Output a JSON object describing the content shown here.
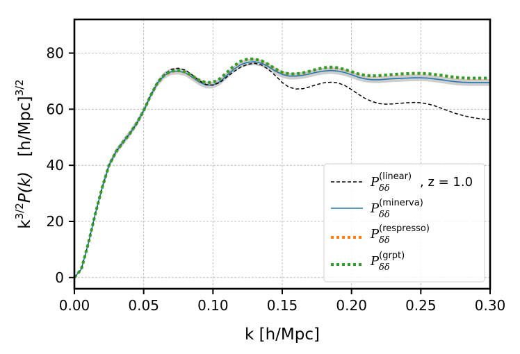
{
  "chart_data": {
    "type": "line",
    "title": "",
    "xlabel": "k [h/Mpc]",
    "ylabel": {
      "main": "k",
      "exponent": "3/2",
      "func": "P(k)",
      "units_open": "[h/Mpc]",
      "units_exponent": "3/2"
    },
    "xlim": [
      0.0,
      0.3
    ],
    "ylim": [
      -4,
      92
    ],
    "xticks": [
      0.0,
      0.05,
      0.1,
      0.15,
      0.2,
      0.25,
      0.3
    ],
    "xtick_labels": [
      "0.00",
      "0.05",
      "0.10",
      "0.15",
      "0.20",
      "0.25",
      "0.30"
    ],
    "yticks": [
      0,
      20,
      40,
      60,
      80
    ],
    "ytick_labels": [
      "0",
      "20",
      "40",
      "60",
      "80"
    ],
    "grid": true,
    "legend_position": "lower-right",
    "series": [
      {
        "name": "linear",
        "legend": {
          "base": "P",
          "sup": "(linear)",
          "sub": "δδ",
          "tail": ", z = 1.0"
        },
        "color": "#000000",
        "style": "dashed",
        "x": [
          0.0,
          0.005,
          0.01,
          0.015,
          0.02,
          0.025,
          0.03,
          0.035,
          0.04,
          0.045,
          0.05,
          0.055,
          0.06,
          0.065,
          0.07,
          0.075,
          0.08,
          0.085,
          0.09,
          0.095,
          0.1,
          0.105,
          0.11,
          0.115,
          0.12,
          0.125,
          0.13,
          0.135,
          0.14,
          0.145,
          0.15,
          0.155,
          0.16,
          0.165,
          0.17,
          0.175,
          0.18,
          0.185,
          0.19,
          0.195,
          0.2,
          0.205,
          0.21,
          0.215,
          0.22,
          0.225,
          0.23,
          0.235,
          0.24,
          0.245,
          0.25,
          0.255,
          0.26,
          0.265,
          0.27,
          0.275,
          0.28,
          0.285,
          0.29,
          0.295,
          0.3
        ],
        "y": [
          0.0,
          3.0,
          12.0,
          22.5,
          32.0,
          40.0,
          44.8,
          48.2,
          51.3,
          55.0,
          59.5,
          64.8,
          69.5,
          72.6,
          74.2,
          74.6,
          74.0,
          72.2,
          70.2,
          68.8,
          68.6,
          69.5,
          71.5,
          73.4,
          75.0,
          76.0,
          76.4,
          75.8,
          74.2,
          72.0,
          69.5,
          67.8,
          67.2,
          67.3,
          68.0,
          68.8,
          69.4,
          69.6,
          69.4,
          68.5,
          67.0,
          65.3,
          63.8,
          62.7,
          62.0,
          61.8,
          61.9,
          62.1,
          62.3,
          62.4,
          62.3,
          61.9,
          61.2,
          60.3,
          59.4,
          58.5,
          57.8,
          57.2,
          56.8,
          56.5,
          56.3
        ]
      },
      {
        "name": "minerva",
        "legend": {
          "base": "P",
          "sup": "(minerva)",
          "sub": "δδ",
          "tail": ""
        },
        "color": "#1f77b4",
        "style": "solid",
        "band_halfwidth": 1.2,
        "band_color": "#c8c8c8",
        "x": [
          0.0,
          0.005,
          0.01,
          0.015,
          0.02,
          0.025,
          0.03,
          0.035,
          0.04,
          0.045,
          0.05,
          0.055,
          0.06,
          0.065,
          0.07,
          0.075,
          0.08,
          0.085,
          0.09,
          0.095,
          0.1,
          0.105,
          0.11,
          0.115,
          0.12,
          0.125,
          0.13,
          0.135,
          0.14,
          0.145,
          0.15,
          0.155,
          0.16,
          0.165,
          0.17,
          0.175,
          0.18,
          0.185,
          0.19,
          0.195,
          0.2,
          0.205,
          0.21,
          0.215,
          0.22,
          0.225,
          0.23,
          0.235,
          0.24,
          0.245,
          0.25,
          0.255,
          0.26,
          0.265,
          0.27,
          0.275,
          0.28,
          0.285,
          0.29,
          0.295,
          0.3
        ],
        "y": [
          0.0,
          3.0,
          12.0,
          22.5,
          32.0,
          40.0,
          44.8,
          48.2,
          51.3,
          55.0,
          59.5,
          64.8,
          69.3,
          72.1,
          73.4,
          73.6,
          73.0,
          71.4,
          69.7,
          68.6,
          68.6,
          69.8,
          72.0,
          74.2,
          75.9,
          76.7,
          76.9,
          76.4,
          75.2,
          73.6,
          72.4,
          71.8,
          71.8,
          72.1,
          72.6,
          73.2,
          73.6,
          73.8,
          73.6,
          73.1,
          72.3,
          71.4,
          70.8,
          70.5,
          70.5,
          70.7,
          70.9,
          71.0,
          71.1,
          71.2,
          71.2,
          71.1,
          70.8,
          70.5,
          70.1,
          69.8,
          69.6,
          69.5,
          69.5,
          69.5,
          69.5
        ]
      },
      {
        "name": "respresso",
        "legend": {
          "base": "P",
          "sup": "(respresso)",
          "sub": "δδ",
          "tail": ""
        },
        "color": "#ff7f0e",
        "style": "dotted",
        "x": [
          0.0,
          0.005,
          0.01,
          0.015,
          0.02,
          0.025,
          0.03,
          0.035,
          0.04,
          0.045,
          0.05,
          0.055,
          0.06,
          0.065,
          0.07,
          0.075,
          0.08,
          0.085,
          0.09,
          0.095,
          0.1,
          0.105,
          0.11,
          0.115,
          0.12,
          0.125,
          0.13,
          0.135,
          0.14,
          0.145,
          0.15,
          0.155,
          0.16,
          0.165,
          0.17,
          0.175,
          0.18,
          0.185,
          0.19,
          0.195,
          0.2,
          0.205,
          0.21,
          0.215,
          0.22,
          0.225,
          0.23,
          0.235,
          0.24,
          0.245,
          0.25,
          0.255,
          0.26,
          0.265,
          0.27,
          0.275,
          0.28,
          0.285,
          0.29,
          0.295,
          0.3
        ],
        "y": [
          0.0,
          3.0,
          12.0,
          22.5,
          32.0,
          40.0,
          44.8,
          48.2,
          51.3,
          55.0,
          59.5,
          64.8,
          69.4,
          72.2,
          73.5,
          73.7,
          73.2,
          71.8,
          70.3,
          69.4,
          69.5,
          70.8,
          73.0,
          75.3,
          77.0,
          77.8,
          77.8,
          77.2,
          75.9,
          74.3,
          73.1,
          72.5,
          72.5,
          72.9,
          73.5,
          74.2,
          74.7,
          74.9,
          74.7,
          74.1,
          73.3,
          72.5,
          72.0,
          71.8,
          71.9,
          72.1,
          72.3,
          72.5,
          72.6,
          72.7,
          72.7,
          72.6,
          72.3,
          72.0,
          71.6,
          71.3,
          71.1,
          71.0,
          71.0,
          71.0,
          71.0
        ]
      },
      {
        "name": "grpt",
        "legend": {
          "base": "P",
          "sup": "(grpt)",
          "sub": "δδ",
          "tail": ""
        },
        "color": "#2ca02c",
        "style": "dotted",
        "x": [
          0.0,
          0.005,
          0.01,
          0.015,
          0.02,
          0.025,
          0.03,
          0.035,
          0.04,
          0.045,
          0.05,
          0.055,
          0.06,
          0.065,
          0.07,
          0.075,
          0.08,
          0.085,
          0.09,
          0.095,
          0.1,
          0.105,
          0.11,
          0.115,
          0.12,
          0.125,
          0.13,
          0.135,
          0.14,
          0.145,
          0.15,
          0.155,
          0.16,
          0.165,
          0.17,
          0.175,
          0.18,
          0.185,
          0.19,
          0.195,
          0.2,
          0.205,
          0.21,
          0.215,
          0.22,
          0.225,
          0.23,
          0.235,
          0.24,
          0.245,
          0.25,
          0.255,
          0.26,
          0.265,
          0.27,
          0.275,
          0.28,
          0.285,
          0.29,
          0.295,
          0.3
        ],
        "y": [
          0.0,
          3.0,
          12.0,
          22.5,
          32.0,
          40.0,
          44.8,
          48.2,
          51.3,
          55.0,
          59.5,
          64.8,
          69.5,
          72.3,
          73.6,
          73.8,
          73.3,
          71.9,
          70.4,
          69.5,
          69.6,
          70.9,
          73.1,
          75.4,
          77.1,
          77.9,
          77.9,
          77.3,
          76.0,
          74.4,
          73.2,
          72.6,
          72.6,
          73.0,
          73.6,
          74.3,
          74.8,
          75.0,
          74.8,
          74.2,
          73.4,
          72.6,
          72.1,
          71.9,
          72.0,
          72.2,
          72.4,
          72.6,
          72.7,
          72.8,
          72.8,
          72.7,
          72.4,
          72.1,
          71.7,
          71.4,
          71.2,
          71.1,
          71.1,
          71.1,
          71.1
        ]
      }
    ]
  }
}
